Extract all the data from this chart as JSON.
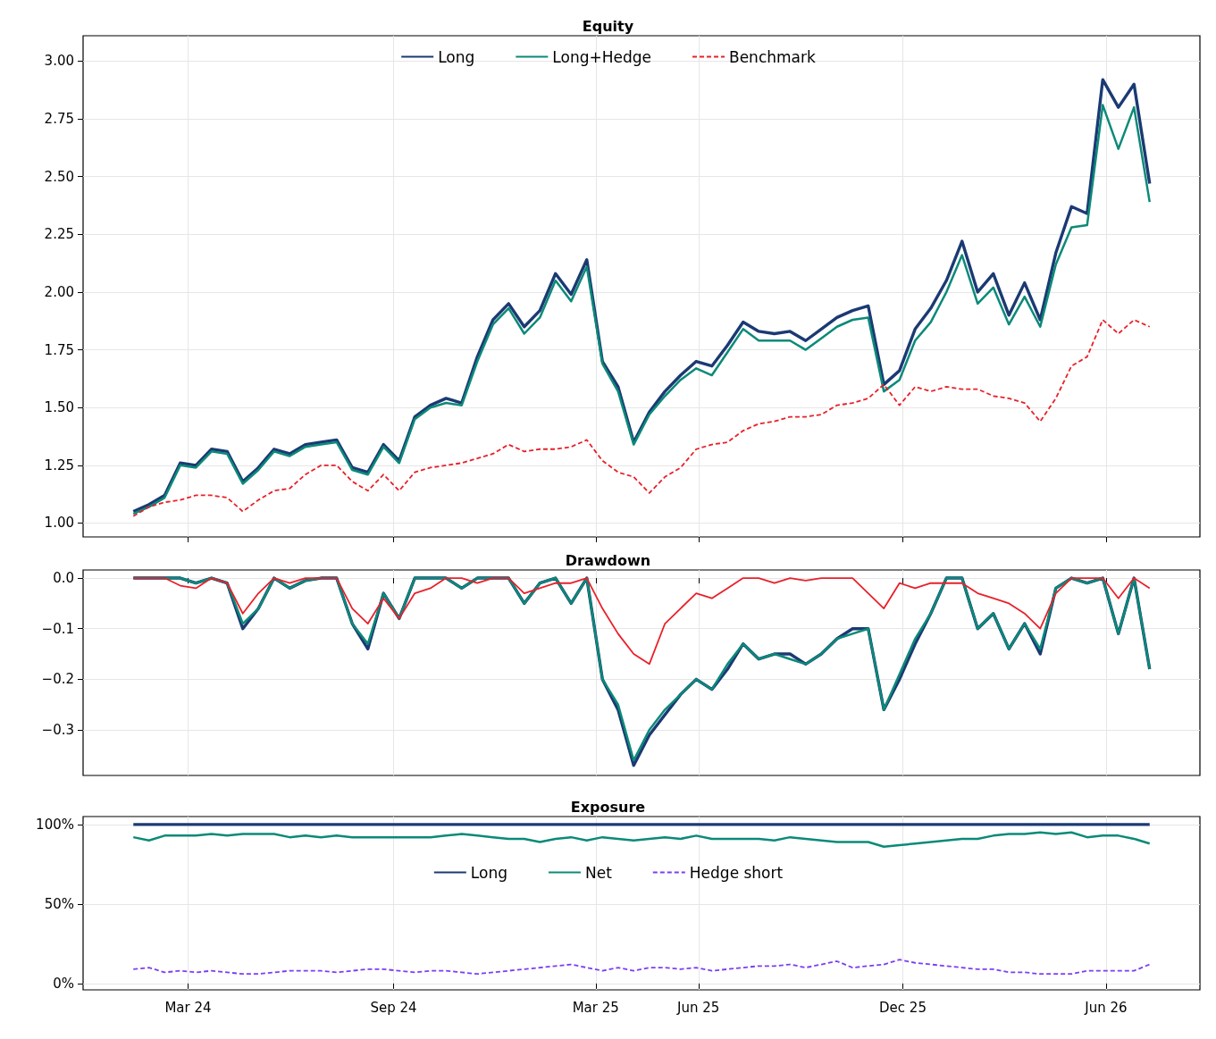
{
  "chart_data": [
    {
      "type": "line",
      "title": "Equity",
      "x": [
        "2024-01-12",
        "2024-01-26",
        "2024-02-09",
        "2024-02-23",
        "2024-03-08",
        "2024-03-22",
        "2024-04-05",
        "2024-04-19",
        "2024-05-03",
        "2024-05-17",
        "2024-05-31",
        "2024-06-14",
        "2024-06-28",
        "2024-07-12",
        "2024-07-26",
        "2024-08-09",
        "2024-08-23",
        "2024-09-06",
        "2024-09-20",
        "2024-10-04",
        "2024-10-18",
        "2024-11-01",
        "2024-11-15",
        "2024-11-29",
        "2024-12-13",
        "2024-12-27",
        "2025-01-10",
        "2025-01-24",
        "2025-02-07",
        "2025-02-21",
        "2025-03-07",
        "2025-03-21",
        "2025-04-04",
        "2025-04-18",
        "2025-05-02",
        "2025-05-16",
        "2025-05-30",
        "2025-06-13",
        "2025-06-27",
        "2025-07-11",
        "2025-07-25",
        "2025-08-08",
        "2025-08-22",
        "2025-09-05",
        "2025-09-19",
        "2025-10-03",
        "2025-10-17",
        "2025-10-31",
        "2025-11-14",
        "2025-11-28",
        "2025-12-12",
        "2025-12-26",
        "2026-01-09",
        "2026-01-23",
        "2026-02-06",
        "2026-02-20",
        "2026-03-06",
        "2026-03-20",
        "2026-04-03",
        "2026-04-17",
        "2026-05-01",
        "2026-05-15",
        "2026-05-29",
        "2026-06-12",
        "2026-06-26",
        "2026-07-10"
      ],
      "series": [
        {
          "name": "Long",
          "color": "#1b3a73",
          "line_style": "solid",
          "values": [
            1.05,
            1.08,
            1.12,
            1.26,
            1.25,
            1.32,
            1.31,
            1.18,
            1.24,
            1.32,
            1.3,
            1.34,
            1.35,
            1.36,
            1.24,
            1.22,
            1.34,
            1.27,
            1.46,
            1.51,
            1.54,
            1.52,
            1.72,
            1.88,
            1.95,
            1.85,
            1.92,
            2.08,
            1.99,
            2.14,
            1.7,
            1.59,
            1.35,
            1.48,
            1.57,
            1.64,
            1.7,
            1.68,
            1.77,
            1.87,
            1.83,
            1.82,
            1.83,
            1.79,
            1.84,
            1.89,
            1.92,
            1.94,
            1.6,
            1.66,
            1.84,
            1.93,
            2.05,
            2.22,
            2.0,
            2.08,
            1.9,
            2.04,
            1.88,
            2.17,
            2.37,
            2.34,
            2.92,
            2.8,
            2.9,
            2.47
          ]
        },
        {
          "name": "Long+Hedge",
          "color": "#0b8a78",
          "line_style": "solid",
          "values": [
            1.04,
            1.07,
            1.11,
            1.25,
            1.24,
            1.31,
            1.3,
            1.17,
            1.23,
            1.31,
            1.29,
            1.33,
            1.34,
            1.35,
            1.23,
            1.21,
            1.33,
            1.26,
            1.45,
            1.5,
            1.52,
            1.51,
            1.7,
            1.86,
            1.93,
            1.82,
            1.89,
            2.05,
            1.96,
            2.11,
            1.69,
            1.57,
            1.34,
            1.47,
            1.55,
            1.62,
            1.67,
            1.64,
            1.74,
            1.84,
            1.79,
            1.79,
            1.79,
            1.75,
            1.8,
            1.85,
            1.88,
            1.89,
            1.57,
            1.62,
            1.79,
            1.87,
            2.0,
            2.16,
            1.95,
            2.02,
            1.86,
            1.98,
            1.85,
            2.12,
            2.28,
            2.29,
            2.81,
            2.62,
            2.8,
            2.39
          ]
        },
        {
          "name": "Benchmark",
          "color": "#e8202a",
          "line_style": "dashed",
          "values": [
            1.03,
            1.07,
            1.09,
            1.1,
            1.12,
            1.12,
            1.11,
            1.05,
            1.1,
            1.14,
            1.15,
            1.21,
            1.25,
            1.25,
            1.18,
            1.14,
            1.21,
            1.14,
            1.22,
            1.24,
            1.25,
            1.26,
            1.28,
            1.3,
            1.34,
            1.31,
            1.32,
            1.32,
            1.33,
            1.36,
            1.27,
            1.22,
            1.2,
            1.13,
            1.2,
            1.24,
            1.32,
            1.34,
            1.35,
            1.4,
            1.43,
            1.44,
            1.46,
            1.46,
            1.47,
            1.51,
            1.52,
            1.54,
            1.6,
            1.51,
            1.59,
            1.57,
            1.59,
            1.58,
            1.58,
            1.55,
            1.54,
            1.52,
            1.44,
            1.54,
            1.68,
            1.72,
            1.88,
            1.82,
            1.88,
            1.85
          ]
        }
      ],
      "xlim": [
        "2023-11-28",
        "2026-08-24"
      ],
      "xticks": [
        {
          "value": "2024-03-01",
          "label": null
        },
        {
          "value": "2024-09-01",
          "label": null
        },
        {
          "value": "2025-03-01",
          "label": null
        },
        {
          "value": "2025-06-01",
          "label": null
        },
        {
          "value": "2025-12-01",
          "label": null
        },
        {
          "value": "2026-06-01",
          "label": null
        }
      ],
      "ylim": [
        0.94,
        3.11
      ],
      "yticks": [
        {
          "value": 1,
          "label": "1.00"
        },
        {
          "value": 1.25,
          "label": "1.25"
        },
        {
          "value": 1.5,
          "label": "1.50"
        },
        {
          "value": 1.75,
          "label": "1.75"
        },
        {
          "value": 2,
          "label": "2.00"
        },
        {
          "value": 2.25,
          "label": "2.25"
        },
        {
          "value": 2.5,
          "label": "2.50"
        },
        {
          "value": 2.75,
          "label": "2.75"
        },
        {
          "value": 3,
          "label": "3.00"
        }
      ],
      "tick_labels": "y",
      "grid": true,
      "legend": "top",
      "marker": "none"
    },
    {
      "type": "line",
      "title": "Drawdown",
      "x": [
        "2024-01-12",
        "2024-01-26",
        "2024-02-09",
        "2024-02-23",
        "2024-03-08",
        "2024-03-22",
        "2024-04-05",
        "2024-04-19",
        "2024-05-03",
        "2024-05-17",
        "2024-05-31",
        "2024-06-14",
        "2024-06-28",
        "2024-07-12",
        "2024-07-26",
        "2024-08-09",
        "2024-08-23",
        "2024-09-06",
        "2024-09-20",
        "2024-10-04",
        "2024-10-18",
        "2024-11-01",
        "2024-11-15",
        "2024-11-29",
        "2024-12-13",
        "2024-12-27",
        "2025-01-10",
        "2025-01-24",
        "2025-02-07",
        "2025-02-21",
        "2025-03-07",
        "2025-03-21",
        "2025-04-04",
        "2025-04-18",
        "2025-05-02",
        "2025-05-16",
        "2025-05-30",
        "2025-06-13",
        "2025-06-27",
        "2025-07-11",
        "2025-07-25",
        "2025-08-08",
        "2025-08-22",
        "2025-09-05",
        "2025-09-19",
        "2025-10-03",
        "2025-10-17",
        "2025-10-31",
        "2025-11-14",
        "2025-11-28",
        "2025-12-12",
        "2025-12-26",
        "2026-01-09",
        "2026-01-23",
        "2026-02-06",
        "2026-02-20",
        "2026-03-06",
        "2026-03-20",
        "2026-04-03",
        "2026-04-17",
        "2026-05-01",
        "2026-05-15",
        "2026-05-29",
        "2026-06-12",
        "2026-06-26",
        "2026-07-10"
      ],
      "series": [
        {
          "color": "#1b3a73",
          "line_style": "solid",
          "values": [
            0,
            0,
            0,
            0,
            -0.01,
            0,
            -0.01,
            -0.1,
            -0.06,
            0,
            -0.02,
            -0.005,
            0,
            0,
            -0.09,
            -0.14,
            -0.03,
            -0.08,
            0,
            0,
            0,
            -0.02,
            0,
            0,
            0,
            -0.05,
            -0.01,
            0,
            -0.05,
            0,
            -0.2,
            -0.26,
            -0.37,
            -0.31,
            -0.27,
            -0.23,
            -0.2,
            -0.22,
            -0.18,
            -0.13,
            -0.16,
            -0.15,
            -0.15,
            -0.17,
            -0.15,
            -0.12,
            -0.1,
            -0.1,
            -0.26,
            -0.2,
            -0.13,
            -0.07,
            0,
            0,
            -0.1,
            -0.07,
            -0.14,
            -0.09,
            -0.15,
            -0.02,
            0,
            -0.01,
            0,
            -0.11,
            0,
            -0.18
          ]
        },
        {
          "color": "#0b8a78",
          "line_style": "solid",
          "values": [
            0,
            0,
            0,
            0,
            -0.01,
            0,
            -0.01,
            -0.09,
            -0.06,
            0,
            -0.02,
            -0.005,
            0,
            0,
            -0.09,
            -0.13,
            -0.03,
            -0.08,
            0,
            0,
            0,
            -0.02,
            0,
            0,
            0,
            -0.05,
            -0.01,
            0,
            -0.05,
            0,
            -0.2,
            -0.25,
            -0.36,
            -0.3,
            -0.26,
            -0.23,
            -0.2,
            -0.22,
            -0.17,
            -0.13,
            -0.16,
            -0.15,
            -0.16,
            -0.17,
            -0.15,
            -0.12,
            -0.11,
            -0.1,
            -0.26,
            -0.19,
            -0.12,
            -0.07,
            0,
            0,
            -0.1,
            -0.07,
            -0.14,
            -0.09,
            -0.14,
            -0.02,
            0,
            -0.01,
            0,
            -0.11,
            0,
            -0.18
          ]
        },
        {
          "color": "#e8202a",
          "line_style": "solid",
          "values": [
            0,
            0,
            0,
            -0.015,
            -0.02,
            0,
            -0.01,
            -0.07,
            -0.03,
            0,
            -0.01,
            0,
            0,
            0,
            -0.06,
            -0.09,
            -0.04,
            -0.08,
            -0.03,
            -0.02,
            0,
            0,
            -0.01,
            0,
            0,
            -0.03,
            -0.02,
            -0.01,
            -0.01,
            0,
            -0.06,
            -0.11,
            -0.15,
            -0.17,
            -0.09,
            -0.06,
            -0.03,
            -0.04,
            -0.02,
            0,
            0,
            -0.01,
            0,
            -0.005,
            0,
            0,
            0,
            -0.03,
            -0.06,
            -0.01,
            -0.02,
            -0.01,
            -0.01,
            -0.01,
            -0.03,
            -0.04,
            -0.05,
            -0.07,
            -0.1,
            -0.03,
            0,
            0,
            0,
            -0.04,
            0,
            -0.02
          ]
        }
      ],
      "xlim": [
        "2023-11-28",
        "2026-08-24"
      ],
      "xticks": [
        {
          "value": "2024-03-01",
          "label": null
        },
        {
          "value": "2024-09-01",
          "label": null
        },
        {
          "value": "2025-03-01",
          "label": null
        },
        {
          "value": "2025-06-01",
          "label": null
        },
        {
          "value": "2025-12-01",
          "label": null
        },
        {
          "value": "2026-06-01",
          "label": null
        }
      ],
      "ylim": [
        -0.39,
        0.016
      ],
      "yticks": [
        {
          "value": -0.3,
          "label": "−0.3"
        },
        {
          "value": -0.2,
          "label": "−0.2"
        },
        {
          "value": -0.1,
          "label": "−0.1"
        },
        {
          "value": 0,
          "label": "0.0"
        }
      ],
      "tick_labels": "y",
      "grid": true,
      "marker": "none"
    },
    {
      "type": "line",
      "title": "Exposure",
      "x": [
        "2024-01-12",
        "2024-01-26",
        "2024-02-09",
        "2024-02-23",
        "2024-03-08",
        "2024-03-22",
        "2024-04-05",
        "2024-04-19",
        "2024-05-03",
        "2024-05-17",
        "2024-05-31",
        "2024-06-14",
        "2024-06-28",
        "2024-07-12",
        "2024-07-26",
        "2024-08-09",
        "2024-08-23",
        "2024-09-06",
        "2024-09-20",
        "2024-10-04",
        "2024-10-18",
        "2024-11-01",
        "2024-11-15",
        "2024-11-29",
        "2024-12-13",
        "2024-12-27",
        "2025-01-10",
        "2025-01-24",
        "2025-02-07",
        "2025-02-21",
        "2025-03-07",
        "2025-03-21",
        "2025-04-04",
        "2025-04-18",
        "2025-05-02",
        "2025-05-16",
        "2025-05-30",
        "2025-06-13",
        "2025-06-27",
        "2025-07-11",
        "2025-07-25",
        "2025-08-08",
        "2025-08-22",
        "2025-09-05",
        "2025-09-19",
        "2025-10-03",
        "2025-10-17",
        "2025-10-31",
        "2025-11-14",
        "2025-11-28",
        "2025-12-12",
        "2025-12-26",
        "2026-01-09",
        "2026-01-23",
        "2026-02-06",
        "2026-02-20",
        "2026-03-06",
        "2026-03-20",
        "2026-04-03",
        "2026-04-17",
        "2026-05-01",
        "2026-05-15",
        "2026-05-29",
        "2026-06-12",
        "2026-06-26",
        "2026-07-10"
      ],
      "series": [
        {
          "name": "Long",
          "color": "#1b3a73",
          "line_style": "solid",
          "values": [
            100,
            100,
            100,
            100,
            100,
            100,
            100,
            100,
            100,
            100,
            100,
            100,
            100,
            100,
            100,
            100,
            100,
            100,
            100,
            100,
            100,
            100,
            100,
            100,
            100,
            100,
            100,
            100,
            100,
            100,
            100,
            100,
            100,
            100,
            100,
            100,
            100,
            100,
            100,
            100,
            100,
            100,
            100,
            100,
            100,
            100,
            100,
            100,
            100,
            100,
            100,
            100,
            100,
            100,
            100,
            100,
            100,
            100,
            100,
            100,
            100,
            100,
            100,
            100,
            100,
            100
          ]
        },
        {
          "name": "Net",
          "color": "#0b8a78",
          "line_style": "solid",
          "values": [
            92,
            90,
            93,
            93,
            93,
            94,
            93,
            94,
            94,
            94,
            92,
            93,
            92,
            93,
            92,
            92,
            92,
            92,
            92,
            92,
            93,
            94,
            93,
            92,
            91,
            91,
            89,
            91,
            92,
            90,
            92,
            91,
            90,
            91,
            92,
            91,
            93,
            91,
            91,
            91,
            91,
            90,
            92,
            91,
            90,
            89,
            89,
            89,
            86,
            87,
            88,
            89,
            90,
            91,
            91,
            93,
            94,
            94,
            95,
            94,
            95,
            92,
            93,
            93,
            91,
            88
          ]
        },
        {
          "name": "Hedge short",
          "color": "#7b3ff2",
          "line_style": "dashed",
          "values": [
            9,
            10,
            7,
            8,
            7,
            8,
            7,
            6,
            6,
            7,
            8,
            8,
            8,
            7,
            8,
            9,
            9,
            8,
            7,
            8,
            8,
            7,
            6,
            7,
            8,
            9,
            10,
            11,
            12,
            10,
            8,
            10,
            8,
            10,
            10,
            9,
            10,
            8,
            9,
            10,
            11,
            11,
            12,
            10,
            12,
            14,
            10,
            11,
            12,
            15,
            13,
            12,
            11,
            10,
            9,
            9,
            7,
            7,
            6,
            6,
            6,
            8,
            8,
            8,
            8,
            12
          ]
        }
      ],
      "xlim": [
        "2023-11-28",
        "2026-08-24"
      ],
      "xticks": [
        {
          "value": "2024-03-01",
          "label": "Mar 24"
        },
        {
          "value": "2024-09-01",
          "label": "Sep 24"
        },
        {
          "value": "2025-03-01",
          "label": "Mar 25"
        },
        {
          "value": "2025-06-01",
          "label": "Jun 25"
        },
        {
          "value": "2025-12-01",
          "label": "Dec 25"
        },
        {
          "value": "2026-06-01",
          "label": "Jun 26"
        }
      ],
      "ylim": [
        -4,
        105
      ],
      "yticks": [
        {
          "value": 0,
          "label": "0%"
        },
        {
          "value": 50,
          "label": "50%"
        },
        {
          "value": 100,
          "label": "100%"
        }
      ],
      "grid": true,
      "legend": "top",
      "marker": "none"
    }
  ]
}
